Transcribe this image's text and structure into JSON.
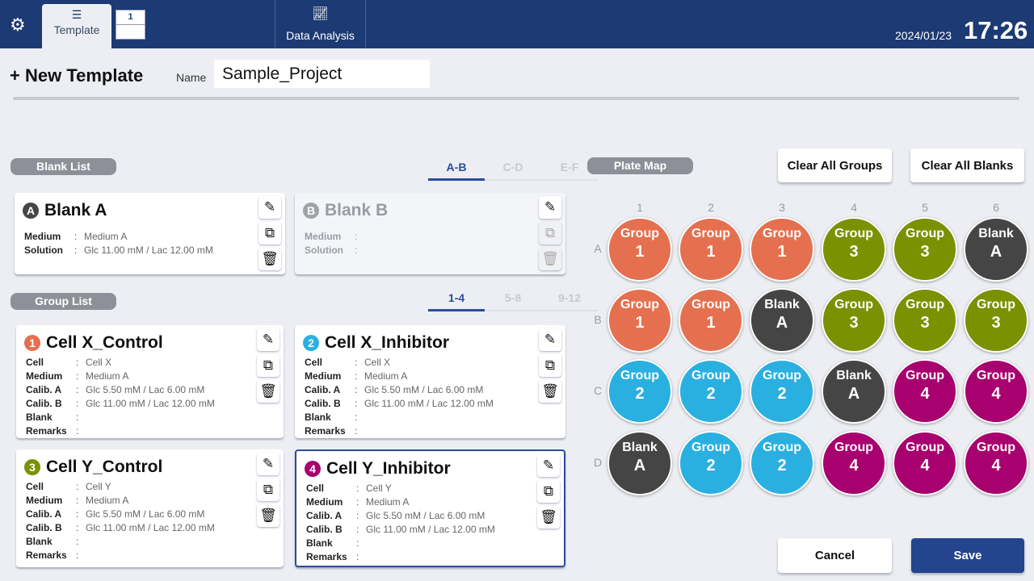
{
  "header": {
    "settings_icon": "gear-icon",
    "tabs": [
      {
        "label": "Template",
        "icon": "list-icon"
      },
      {
        "label": "Data Analysis",
        "icon": "line-chart-icon"
      }
    ],
    "plate_tab": "1",
    "date": "2024/01/23",
    "time": "17:26"
  },
  "template": {
    "title": "New Template",
    "name_label": "Name",
    "name_value": "Sample_Project"
  },
  "blank_list": {
    "label": "Blank List",
    "tabs": [
      "A-B",
      "C-D",
      "E-F"
    ],
    "active_tab": 0,
    "cards": [
      {
        "badge": "A",
        "title": "Blank A",
        "enabled": true,
        "fields": [
          {
            "k": "Medium",
            "v": "Medium A"
          },
          {
            "k": "Solution",
            "v": "Glc 11.00 mM / Lac 12.00 mM"
          }
        ]
      },
      {
        "badge": "B",
        "title": "Blank B",
        "enabled": false,
        "fields": [
          {
            "k": "Medium",
            "v": ""
          },
          {
            "k": "Solution",
            "v": ""
          }
        ]
      }
    ]
  },
  "group_list": {
    "label": "Group List",
    "tabs": [
      "1-4",
      "5-8",
      "9-12"
    ],
    "active_tab": 0,
    "cards": [
      {
        "badge": "1",
        "title": "Cell X_Control",
        "color": "#e5704f",
        "selected": false,
        "fields": [
          {
            "k": "Cell",
            "v": "Cell X"
          },
          {
            "k": "Medium",
            "v": "Medium A"
          },
          {
            "k": "Calib. A",
            "v": "Glc 5.50 mM / Lac 6.00 mM"
          },
          {
            "k": "Calib. B",
            "v": "Glc 11.00 mM / Lac 12.00 mM"
          },
          {
            "k": "Blank",
            "v": ""
          },
          {
            "k": "Remarks",
            "v": ""
          }
        ]
      },
      {
        "badge": "2",
        "title": "Cell X_Inhibitor",
        "color": "#2ab0e0",
        "selected": false,
        "fields": [
          {
            "k": "Cell",
            "v": "Cell X"
          },
          {
            "k": "Medium",
            "v": "Medium A"
          },
          {
            "k": "Calib. A",
            "v": "Glc 5.50 mM / Lac 6.00 mM"
          },
          {
            "k": "Calib. B",
            "v": "Glc 11.00 mM / Lac 12.00 mM"
          },
          {
            "k": "Blank",
            "v": ""
          },
          {
            "k": "Remarks",
            "v": ""
          }
        ]
      },
      {
        "badge": "3",
        "title": "Cell Y_Control",
        "color": "#7a9100",
        "selected": false,
        "fields": [
          {
            "k": "Cell",
            "v": "Cell Y"
          },
          {
            "k": "Medium",
            "v": "Medium A"
          },
          {
            "k": "Calib. A",
            "v": "Glc 5.50 mM / Lac 6.00 mM"
          },
          {
            "k": "Calib. B",
            "v": "Glc 11.00 mM / Lac 12.00 mM"
          },
          {
            "k": "Blank",
            "v": ""
          },
          {
            "k": "Remarks",
            "v": ""
          }
        ]
      },
      {
        "badge": "4",
        "title": "Cell Y_Inhibitor",
        "color": "#a8006e",
        "selected": true,
        "fields": [
          {
            "k": "Cell",
            "v": "Cell Y"
          },
          {
            "k": "Medium",
            "v": "Medium A"
          },
          {
            "k": "Calib. A",
            "v": "Glc 5.50 mM / Lac 6.00 mM"
          },
          {
            "k": "Calib. B",
            "v": "Glc 11.00 mM / Lac 12.00 mM"
          },
          {
            "k": "Blank",
            "v": ""
          },
          {
            "k": "Remarks",
            "v": ""
          }
        ]
      }
    ]
  },
  "plate_map": {
    "label": "Plate Map",
    "clear_groups": "Clear All Groups",
    "clear_blanks": "Clear All Blanks",
    "columns": [
      "1",
      "2",
      "3",
      "4",
      "5",
      "6"
    ],
    "rows": [
      "A",
      "B",
      "C",
      "D"
    ],
    "colors": {
      "1": "#e5704f",
      "2": "#2ab0e0",
      "3": "#7a9100",
      "4": "#a8006e",
      "A": "#454545"
    },
    "wells": [
      [
        [
          "Group",
          "1"
        ],
        [
          "Group",
          "1"
        ],
        [
          "Group",
          "1"
        ],
        [
          "Group",
          "3"
        ],
        [
          "Group",
          "3"
        ],
        [
          "Blank",
          "A"
        ]
      ],
      [
        [
          "Group",
          "1"
        ],
        [
          "Group",
          "1"
        ],
        [
          "Blank",
          "A"
        ],
        [
          "Group",
          "3"
        ],
        [
          "Group",
          "3"
        ],
        [
          "Group",
          "3"
        ]
      ],
      [
        [
          "Group",
          "2"
        ],
        [
          "Group",
          "2"
        ],
        [
          "Group",
          "2"
        ],
        [
          "Blank",
          "A"
        ],
        [
          "Group",
          "4"
        ],
        [
          "Group",
          "4"
        ]
      ],
      [
        [
          "Blank",
          "A"
        ],
        [
          "Group",
          "2"
        ],
        [
          "Group",
          "2"
        ],
        [
          "Group",
          "4"
        ],
        [
          "Group",
          "4"
        ],
        [
          "Group",
          "4"
        ]
      ]
    ]
  },
  "footer": {
    "cancel": "Cancel",
    "save": "Save"
  }
}
